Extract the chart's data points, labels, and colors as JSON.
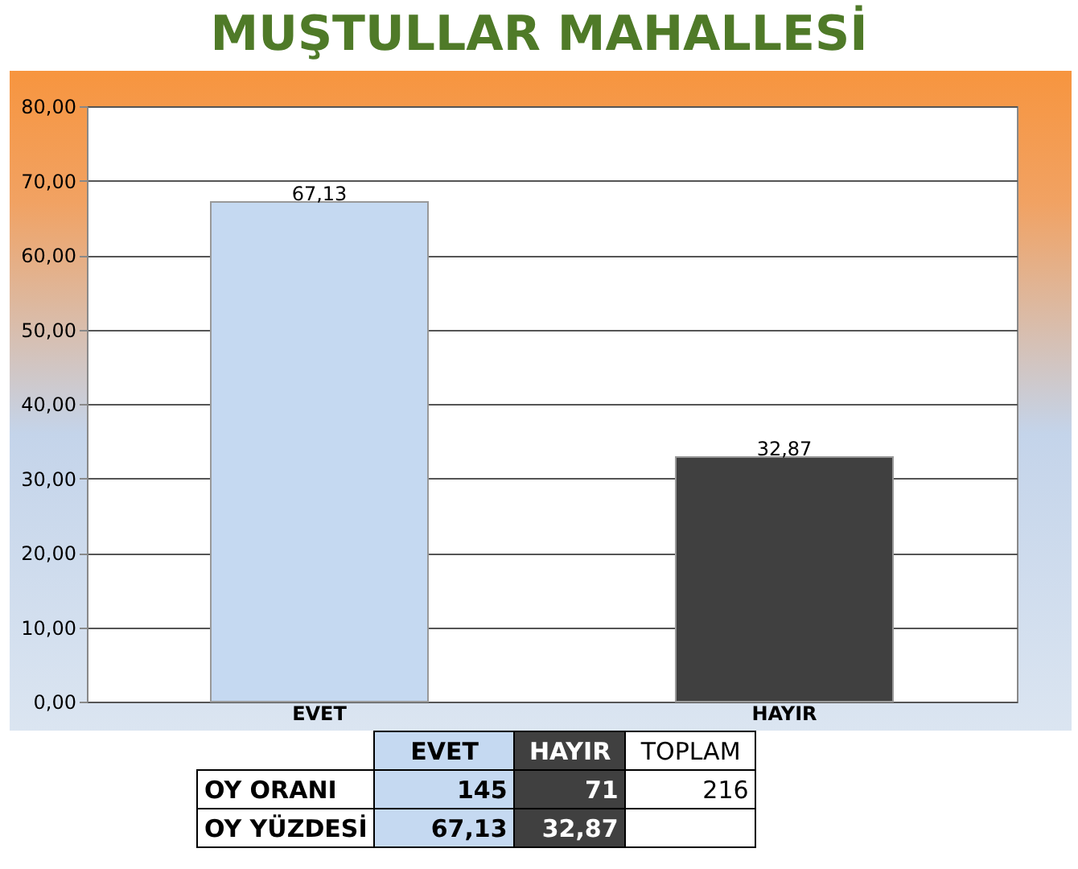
{
  "chart_data": {
    "type": "bar",
    "title": "MUŞTULLAR MAHALLESİ",
    "categories": [
      "EVET",
      "HAYIR"
    ],
    "values": [
      67.13,
      32.87
    ],
    "colors": [
      "#c5d9f1",
      "#404040"
    ],
    "value_labels": [
      "67,13",
      "32,87"
    ],
    "ylim": [
      0,
      80
    ],
    "yticks": [
      {
        "value": 0,
        "label": "0,00"
      },
      {
        "value": 10,
        "label": "10,00"
      },
      {
        "value": 20,
        "label": "20,00"
      },
      {
        "value": 30,
        "label": "30,00"
      },
      {
        "value": 40,
        "label": "40,00"
      },
      {
        "value": 50,
        "label": "50,00"
      },
      {
        "value": 60,
        "label": "60,00"
      },
      {
        "value": 70,
        "label": "70,00"
      },
      {
        "value": 80,
        "label": "80,00"
      }
    ],
    "grid": "y",
    "annotations": [
      "OY ORANI",
      "145",
      "71",
      "TOPLAM",
      "216",
      "OY YÜZDESİ"
    ]
  }
}
